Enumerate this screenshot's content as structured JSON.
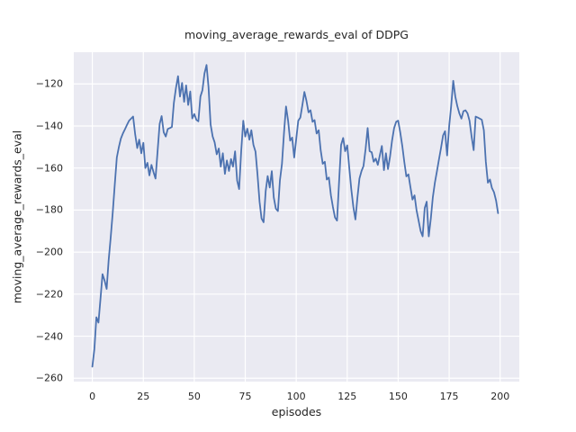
{
  "theme": {
    "figure_bg": "#ffffff",
    "axes_bg": "#eaeaf2",
    "grid_color": "#ffffff",
    "text_color": "#262626",
    "line_color": "#4c72b0"
  },
  "chart_data": {
    "type": "line",
    "title": "moving_average_rewards_eval of DDPG",
    "xlabel": "episodes",
    "ylabel": "moving_average_rewards_eval",
    "grid": true,
    "legend_position": "none",
    "xlim": [
      -9.1,
      209.4
    ],
    "ylim": [
      -261.6,
      -104.9
    ],
    "xticks": [
      0,
      25,
      50,
      75,
      100,
      125,
      150,
      175,
      200
    ],
    "yticks": [
      -260,
      -240,
      -220,
      -200,
      -180,
      -160,
      -140,
      -120
    ],
    "series": [
      {
        "name": "moving_average_rewards_eval",
        "color": "#4c72b0",
        "x_start": 0,
        "x_step": 1,
        "values": [
          -254.5,
          -246,
          -231,
          -233.5,
          -222,
          -210.5,
          -213.5,
          -217.5,
          -204,
          -193,
          -181,
          -168,
          -155,
          -150,
          -146,
          -143.5,
          -141.5,
          -139.5,
          -137.5,
          -136.5,
          -135.5,
          -144,
          -150.5,
          -146.5,
          -153,
          -148,
          -160,
          -157.5,
          -163.5,
          -158.5,
          -162,
          -165,
          -152,
          -139,
          -135.3,
          -143,
          -145,
          -141.4,
          -141,
          -140.5,
          -129,
          -122,
          -116.3,
          -126,
          -119.5,
          -128.5,
          -120.7,
          -130,
          -123.6,
          -136.4,
          -134.3,
          -137.1,
          -137.8,
          -126,
          -123,
          -115,
          -111,
          -121.5,
          -139.3,
          -145,
          -147.8,
          -153.5,
          -150.7,
          -159.3,
          -153,
          -162.8,
          -156.4,
          -161.4,
          -155.7,
          -159.3,
          -152.1,
          -166,
          -170,
          -152,
          -137.5,
          -145,
          -141.3,
          -146.5,
          -142,
          -149,
          -152.2,
          -163,
          -176,
          -184,
          -185.8,
          -171,
          -163.8,
          -169.3,
          -161.5,
          -174,
          -179.3,
          -180.5,
          -166,
          -158,
          -143,
          -130.7,
          -137.5,
          -147,
          -145.5,
          -155,
          -146,
          -137.5,
          -136,
          -130,
          -123.8,
          -128,
          -133.5,
          -132.5,
          -138,
          -137.2,
          -143.6,
          -142,
          -151.5,
          -158,
          -157,
          -165.5,
          -164.5,
          -173,
          -178.5,
          -183.5,
          -185,
          -167,
          -149,
          -145.7,
          -152,
          -149.2,
          -160,
          -170,
          -178.5,
          -184.5,
          -174.3,
          -165,
          -161.4,
          -159,
          -151,
          -141,
          -152,
          -152.5,
          -157,
          -155.5,
          -158.5,
          -154,
          -149.5,
          -161,
          -153,
          -160.5,
          -154.5,
          -147,
          -141,
          -138,
          -137.5,
          -143,
          -149.5,
          -157,
          -164,
          -163,
          -169,
          -175,
          -173,
          -180,
          -185,
          -190,
          -192.5,
          -179,
          -176,
          -192.5,
          -184,
          -174,
          -167,
          -161.5,
          -156,
          -150.5,
          -144.5,
          -142.5,
          -154,
          -140,
          -130.5,
          -118.5,
          -126,
          -130.5,
          -134,
          -136.5,
          -133,
          -132.5,
          -134,
          -137.5,
          -145,
          -151.5,
          -135.5,
          -136,
          -136.5,
          -137,
          -142,
          -157,
          -167,
          -165.5,
          -169.5,
          -171.5,
          -175.5,
          -181.5
        ]
      }
    ]
  }
}
